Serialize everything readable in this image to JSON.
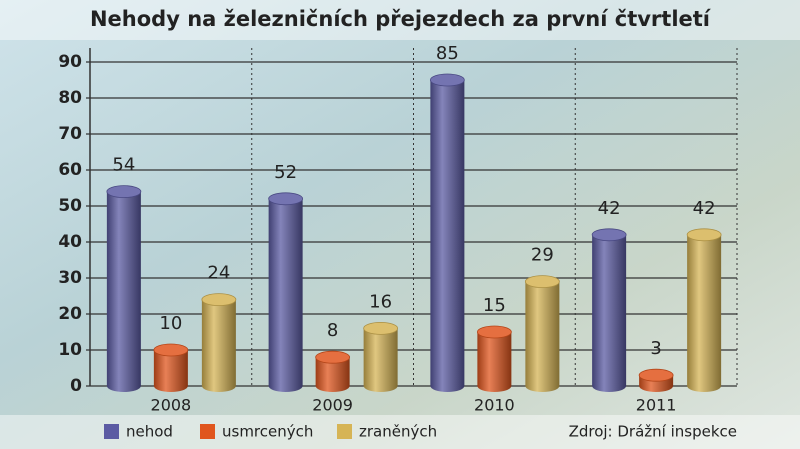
{
  "chart_data": {
    "type": "bar",
    "title": "Nehody na železničních přejezdech za první čtvrtletí",
    "categories": [
      "2008",
      "2009",
      "2010",
      "2011"
    ],
    "series": [
      {
        "name": "nehod",
        "color": "#5b5ba3",
        "values": [
          54,
          52,
          85,
          42
        ]
      },
      {
        "name": "usmrcených",
        "color": "#e0561e",
        "values": [
          10,
          8,
          15,
          3
        ]
      },
      {
        "name": "zraněných",
        "color": "#d6b455",
        "values": [
          24,
          16,
          29,
          42
        ]
      }
    ],
    "ylim": [
      0,
      90
    ],
    "yticks": [
      0,
      10,
      20,
      30,
      40,
      50,
      60,
      70,
      80,
      90
    ],
    "grid": true,
    "legend": "bottom",
    "source": "Zdroj: Drážní inspekce"
  }
}
